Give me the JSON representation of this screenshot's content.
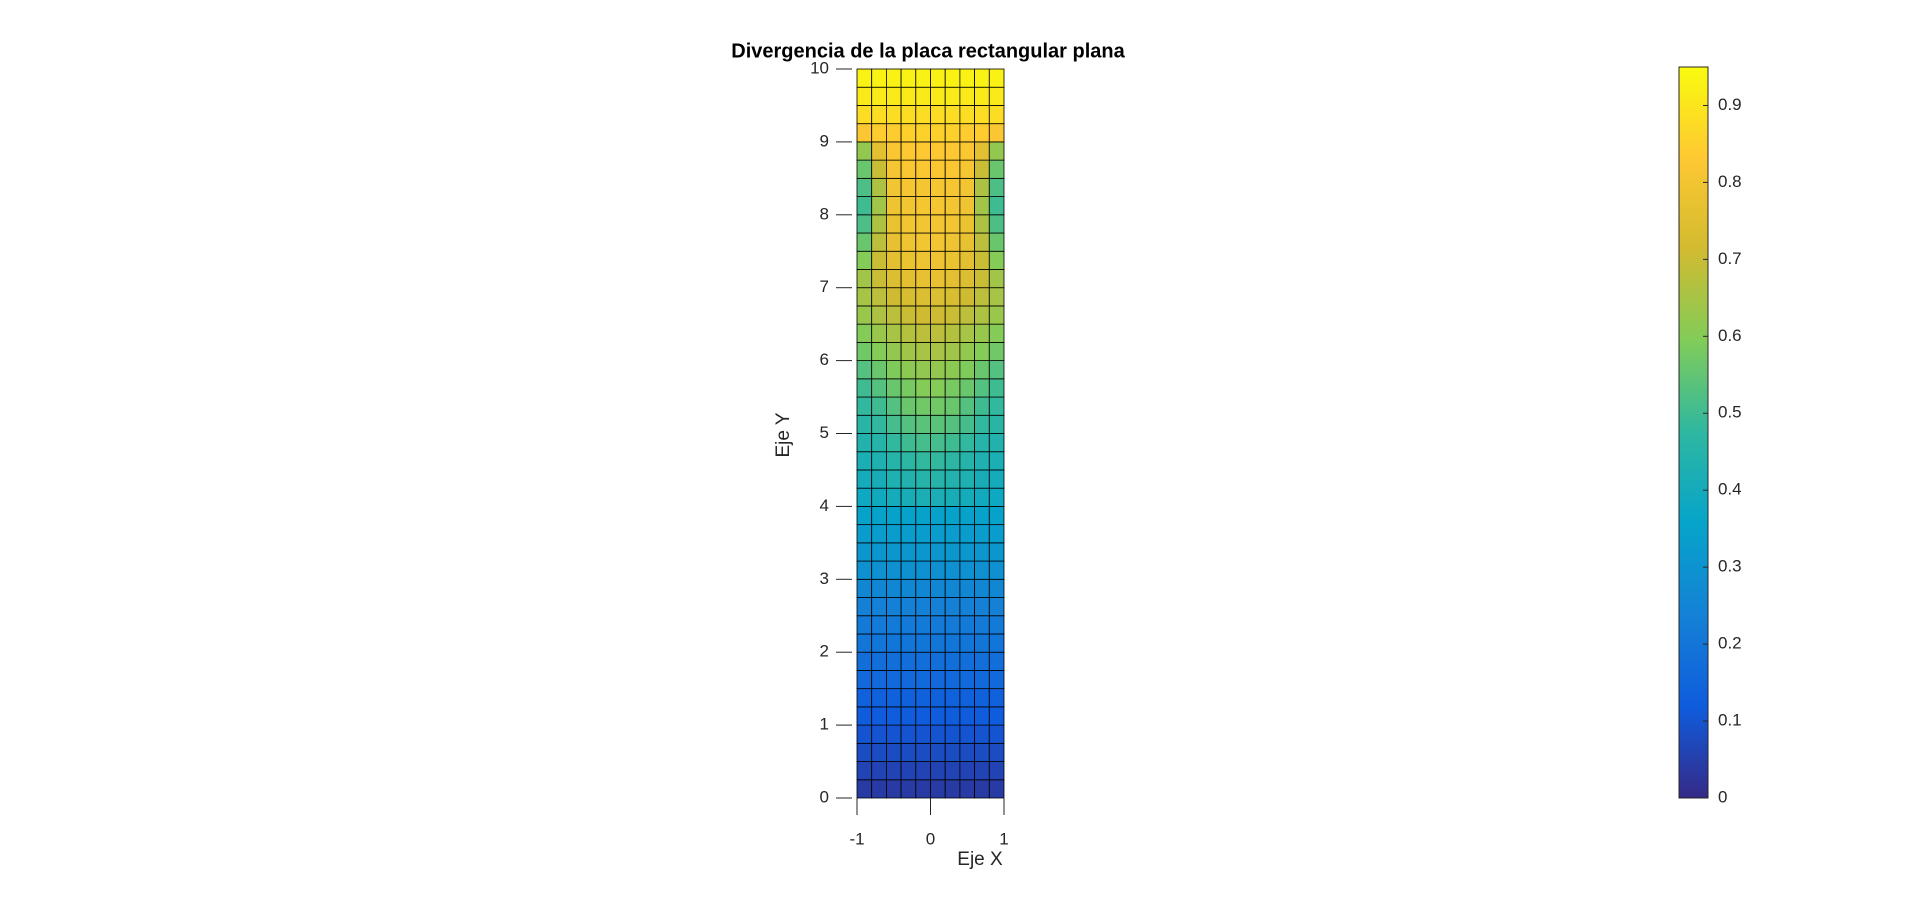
{
  "chart_data": {
    "type": "heatmap",
    "title": "Divergencia de la placa rectangular plana",
    "x_label": "Eje X",
    "y_label": "Eje Y",
    "xlim": [
      -1,
      1
    ],
    "xticks": [
      -1,
      0,
      1
    ],
    "ylim": [
      0,
      10
    ],
    "yticks": [
      0,
      1,
      2,
      3,
      4,
      5,
      6,
      7,
      8,
      9,
      10
    ],
    "colormap": "parula",
    "clim": [
      0,
      0.95
    ],
    "cticks": [
      0,
      0.1,
      0.2,
      0.3,
      0.4,
      0.5,
      0.6,
      0.7,
      0.8,
      0.9
    ],
    "z": [
      [
        0.04,
        0.04,
        0.04,
        0.04,
        0.04,
        0.04,
        0.04,
        0.04,
        0.04,
        0.04
      ],
      [
        0.06,
        0.06,
        0.06,
        0.06,
        0.06,
        0.06,
        0.06,
        0.06,
        0.06,
        0.06
      ],
      [
        0.08,
        0.08,
        0.08,
        0.08,
        0.08,
        0.08,
        0.08,
        0.08,
        0.08,
        0.08
      ],
      [
        0.1,
        0.1,
        0.1,
        0.1,
        0.1,
        0.1,
        0.1,
        0.1,
        0.1,
        0.1
      ],
      [
        0.12,
        0.12,
        0.12,
        0.12,
        0.12,
        0.12,
        0.12,
        0.12,
        0.12,
        0.12
      ],
      [
        0.14,
        0.14,
        0.14,
        0.14,
        0.14,
        0.14,
        0.14,
        0.14,
        0.14,
        0.14
      ],
      [
        0.16,
        0.16,
        0.16,
        0.16,
        0.16,
        0.16,
        0.16,
        0.16,
        0.16,
        0.16
      ],
      [
        0.18,
        0.18,
        0.18,
        0.18,
        0.18,
        0.18,
        0.18,
        0.18,
        0.18,
        0.18
      ],
      [
        0.2,
        0.2,
        0.2,
        0.2,
        0.2,
        0.2,
        0.2,
        0.2,
        0.2,
        0.2
      ],
      [
        0.22,
        0.22,
        0.22,
        0.22,
        0.22,
        0.22,
        0.22,
        0.22,
        0.22,
        0.22
      ],
      [
        0.24,
        0.24,
        0.24,
        0.24,
        0.24,
        0.24,
        0.24,
        0.24,
        0.24,
        0.24
      ],
      [
        0.26,
        0.26,
        0.26,
        0.26,
        0.26,
        0.26,
        0.26,
        0.26,
        0.26,
        0.26
      ],
      [
        0.29,
        0.29,
        0.29,
        0.29,
        0.29,
        0.29,
        0.29,
        0.29,
        0.29,
        0.29
      ],
      [
        0.31,
        0.31,
        0.31,
        0.31,
        0.31,
        0.31,
        0.31,
        0.31,
        0.31,
        0.31
      ],
      [
        0.33,
        0.33,
        0.33,
        0.33,
        0.33,
        0.33,
        0.33,
        0.33,
        0.33,
        0.33
      ],
      [
        0.35,
        0.35,
        0.35,
        0.35,
        0.35,
        0.35,
        0.35,
        0.35,
        0.35,
        0.35
      ],
      [
        0.38,
        0.39,
        0.4,
        0.41,
        0.42,
        0.42,
        0.41,
        0.4,
        0.39,
        0.38
      ],
      [
        0.4,
        0.41,
        0.43,
        0.44,
        0.45,
        0.45,
        0.44,
        0.43,
        0.41,
        0.4
      ],
      [
        0.42,
        0.43,
        0.45,
        0.47,
        0.48,
        0.48,
        0.47,
        0.45,
        0.43,
        0.42
      ],
      [
        0.44,
        0.45,
        0.48,
        0.5,
        0.51,
        0.51,
        0.5,
        0.48,
        0.45,
        0.44
      ],
      [
        0.46,
        0.48,
        0.51,
        0.53,
        0.54,
        0.54,
        0.53,
        0.51,
        0.48,
        0.46
      ],
      [
        0.48,
        0.5,
        0.53,
        0.56,
        0.57,
        0.57,
        0.56,
        0.53,
        0.5,
        0.48
      ],
      [
        0.5,
        0.53,
        0.56,
        0.58,
        0.6,
        0.6,
        0.58,
        0.56,
        0.53,
        0.5
      ],
      [
        0.53,
        0.56,
        0.59,
        0.61,
        0.62,
        0.62,
        0.61,
        0.59,
        0.56,
        0.53
      ],
      [
        0.57,
        0.6,
        0.62,
        0.64,
        0.65,
        0.65,
        0.64,
        0.62,
        0.6,
        0.57
      ],
      [
        0.6,
        0.63,
        0.65,
        0.67,
        0.68,
        0.68,
        0.67,
        0.65,
        0.63,
        0.6
      ],
      [
        0.63,
        0.66,
        0.68,
        0.7,
        0.71,
        0.71,
        0.7,
        0.68,
        0.66,
        0.63
      ],
      [
        0.65,
        0.68,
        0.71,
        0.73,
        0.74,
        0.74,
        0.73,
        0.71,
        0.68,
        0.65
      ],
      [
        0.64,
        0.7,
        0.74,
        0.76,
        0.77,
        0.77,
        0.76,
        0.74,
        0.7,
        0.64
      ],
      [
        0.6,
        0.7,
        0.76,
        0.78,
        0.79,
        0.79,
        0.78,
        0.76,
        0.7,
        0.6
      ],
      [
        0.56,
        0.68,
        0.77,
        0.79,
        0.8,
        0.8,
        0.79,
        0.77,
        0.68,
        0.56
      ],
      [
        0.52,
        0.66,
        0.78,
        0.8,
        0.8,
        0.8,
        0.8,
        0.78,
        0.66,
        0.52
      ],
      [
        0.5,
        0.64,
        0.79,
        0.8,
        0.81,
        0.81,
        0.8,
        0.79,
        0.64,
        0.5
      ],
      [
        0.52,
        0.66,
        0.8,
        0.81,
        0.81,
        0.81,
        0.81,
        0.8,
        0.66,
        0.52
      ],
      [
        0.56,
        0.7,
        0.81,
        0.82,
        0.82,
        0.82,
        0.82,
        0.81,
        0.7,
        0.56
      ],
      [
        0.62,
        0.76,
        0.82,
        0.83,
        0.83,
        0.83,
        0.83,
        0.82,
        0.76,
        0.62
      ],
      [
        0.82,
        0.84,
        0.84,
        0.85,
        0.85,
        0.85,
        0.85,
        0.84,
        0.84,
        0.82
      ],
      [
        0.88,
        0.88,
        0.88,
        0.88,
        0.88,
        0.88,
        0.88,
        0.88,
        0.88,
        0.88
      ],
      [
        0.91,
        0.91,
        0.91,
        0.91,
        0.91,
        0.91,
        0.91,
        0.91,
        0.91,
        0.91
      ],
      [
        0.93,
        0.93,
        0.93,
        0.93,
        0.93,
        0.93,
        0.93,
        0.93,
        0.93,
        0.93
      ]
    ]
  }
}
